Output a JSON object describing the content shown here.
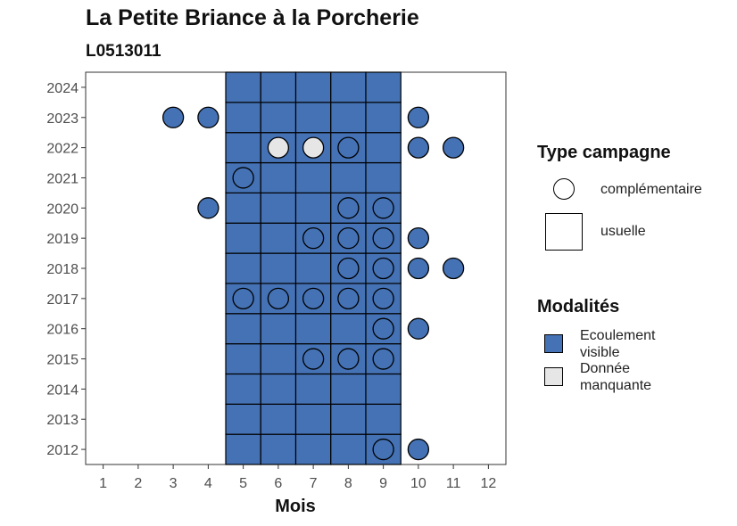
{
  "chart_data": {
    "type": "heatmap",
    "title": "La Petite Briance à la Porcherie",
    "subtitle": "L0513011",
    "xlabel": "Mois",
    "ylabel": "",
    "x_ticks": [
      1,
      2,
      3,
      4,
      5,
      6,
      7,
      8,
      9,
      10,
      11,
      12
    ],
    "y_ticks": [
      2012,
      2013,
      2014,
      2015,
      2016,
      2017,
      2018,
      2019,
      2020,
      2021,
      2022,
      2023,
      2024
    ],
    "xlim": [
      0.5,
      12.5
    ],
    "ylim": [
      2011.5,
      2024.5
    ],
    "grid": false,
    "colors": {
      "Ecoulement visible": "#4472b5",
      "Donnée manquante": "#e6e6e6"
    },
    "usuelle_tiles": {
      "modalite": "Ecoulement visible",
      "months": [
        5,
        6,
        7,
        8,
        9
      ],
      "years": [
        2012,
        2013,
        2014,
        2015,
        2016,
        2017,
        2018,
        2019,
        2020,
        2021,
        2022,
        2023,
        2024
      ]
    },
    "complementaire_points": [
      {
        "month": 3,
        "year": 2023,
        "modalite": "Ecoulement visible"
      },
      {
        "month": 4,
        "year": 2023,
        "modalite": "Ecoulement visible"
      },
      {
        "month": 10,
        "year": 2023,
        "modalite": "Ecoulement visible"
      },
      {
        "month": 6,
        "year": 2022,
        "modalite": "Donnée manquante"
      },
      {
        "month": 7,
        "year": 2022,
        "modalite": "Donnée manquante"
      },
      {
        "month": 8,
        "year": 2022,
        "modalite": "Ecoulement visible"
      },
      {
        "month": 10,
        "year": 2022,
        "modalite": "Ecoulement visible"
      },
      {
        "month": 11,
        "year": 2022,
        "modalite": "Ecoulement visible"
      },
      {
        "month": 5,
        "year": 2021,
        "modalite": "Ecoulement visible"
      },
      {
        "month": 4,
        "year": 2020,
        "modalite": "Ecoulement visible"
      },
      {
        "month": 8,
        "year": 2020,
        "modalite": "Ecoulement visible"
      },
      {
        "month": 9,
        "year": 2020,
        "modalite": "Ecoulement visible"
      },
      {
        "month": 7,
        "year": 2019,
        "modalite": "Ecoulement visible"
      },
      {
        "month": 8,
        "year": 2019,
        "modalite": "Ecoulement visible"
      },
      {
        "month": 9,
        "year": 2019,
        "modalite": "Ecoulement visible"
      },
      {
        "month": 10,
        "year": 2019,
        "modalite": "Ecoulement visible"
      },
      {
        "month": 8,
        "year": 2018,
        "modalite": "Ecoulement visible"
      },
      {
        "month": 9,
        "year": 2018,
        "modalite": "Ecoulement visible"
      },
      {
        "month": 10,
        "year": 2018,
        "modalite": "Ecoulement visible"
      },
      {
        "month": 11,
        "year": 2018,
        "modalite": "Ecoulement visible"
      },
      {
        "month": 5,
        "year": 2017,
        "modalite": "Ecoulement visible"
      },
      {
        "month": 6,
        "year": 2017,
        "modalite": "Ecoulement visible"
      },
      {
        "month": 7,
        "year": 2017,
        "modalite": "Ecoulement visible"
      },
      {
        "month": 8,
        "year": 2017,
        "modalite": "Ecoulement visible"
      },
      {
        "month": 9,
        "year": 2017,
        "modalite": "Ecoulement visible"
      },
      {
        "month": 9,
        "year": 2016,
        "modalite": "Ecoulement visible"
      },
      {
        "month": 10,
        "year": 2016,
        "modalite": "Ecoulement visible"
      },
      {
        "month": 7,
        "year": 2015,
        "modalite": "Ecoulement visible"
      },
      {
        "month": 8,
        "year": 2015,
        "modalite": "Ecoulement visible"
      },
      {
        "month": 9,
        "year": 2015,
        "modalite": "Ecoulement visible"
      },
      {
        "month": 9,
        "year": 2012,
        "modalite": "Ecoulement visible"
      },
      {
        "month": 10,
        "year": 2012,
        "modalite": "Ecoulement visible"
      }
    ],
    "legend": {
      "placement": "right",
      "type_campagne": {
        "title": "Type campagne",
        "items": [
          "complémentaire",
          "usuelle"
        ]
      },
      "modalites": {
        "title": "Modalités",
        "items": [
          {
            "line1": "Ecoulement",
            "line2": "visible",
            "color": "#4472b5"
          },
          {
            "line1": "Donnée",
            "line2": "manquante",
            "color": "#e6e6e6"
          }
        ]
      }
    }
  }
}
